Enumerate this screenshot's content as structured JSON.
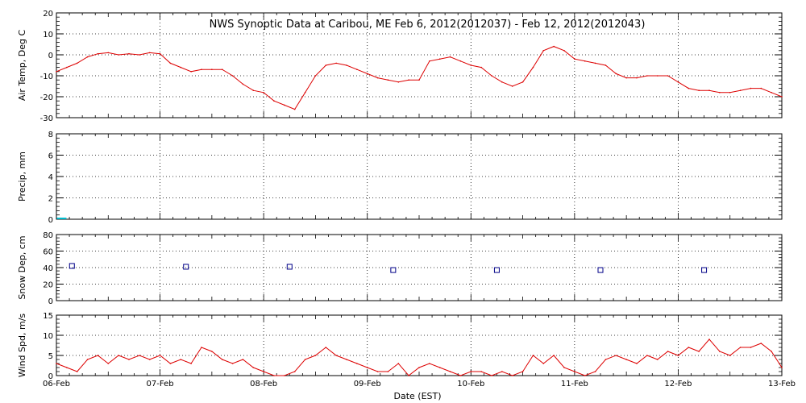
{
  "title": "NWS Synoptic Data at Caribou, ME   Feb  6, 2012(2012037) - Feb 12, 2012(2012043)",
  "xlabel": "Date (EST)",
  "x_tick_labels": [
    "06-Feb",
    "07-Feb",
    "08-Feb",
    "09-Feb",
    "10-Feb",
    "11-Feb",
    "12-Feb",
    "13-Feb"
  ],
  "colors": {
    "air_temp": "#dd0000",
    "precip": "#00bbcc",
    "snow_depth": "#000088",
    "wind_speed": "#dd0000",
    "grid": "#000000"
  },
  "chart_data": [
    {
      "type": "line",
      "ylabel": "Air Temp, Deg C",
      "ylim": [
        -30,
        20
      ],
      "yticks": [
        -30,
        -20,
        -10,
        0,
        10,
        20
      ],
      "x_unit": "days since 06-Feb",
      "series": [
        {
          "x": [
            0,
            0.1,
            0.2,
            0.3,
            0.4,
            0.5,
            0.6,
            0.7,
            0.8,
            0.9,
            1.0,
            1.1,
            1.2,
            1.3,
            1.4,
            1.5,
            1.6,
            1.7,
            1.8,
            1.9,
            2.0,
            2.1,
            2.2,
            2.3,
            2.4,
            2.5,
            2.6,
            2.7,
            2.8,
            2.9,
            3.0,
            3.1,
            3.2,
            3.3,
            3.4,
            3.5,
            3.6,
            3.7,
            3.8,
            3.9,
            4.0,
            4.1,
            4.2,
            4.3,
            4.4,
            4.5,
            4.6,
            4.7,
            4.8,
            4.9,
            5.0,
            5.1,
            5.2,
            5.3,
            5.4,
            5.5,
            5.6,
            5.7,
            5.8,
            5.9,
            6.0,
            6.1,
            6.2,
            6.3,
            6.4,
            6.5,
            6.6,
            6.7,
            6.8,
            6.9,
            7.0
          ],
          "values": [
            -8,
            -6,
            -4,
            -1,
            0.5,
            1,
            0,
            0.5,
            0,
            1,
            0.5,
            -4,
            -6,
            -8,
            -7,
            -7,
            -7,
            -10,
            -14,
            -17,
            -18,
            -22,
            -24,
            -26,
            -18,
            -10,
            -5,
            -4,
            -5,
            -7,
            -9,
            -11,
            -12,
            -13,
            -12,
            -12,
            -3,
            -2,
            -1,
            -3,
            -5,
            -6,
            -10,
            -13,
            -15,
            -13,
            -6,
            2,
            4,
            2,
            -2,
            -3,
            -4,
            -5,
            -9,
            -11,
            -11,
            -10,
            -10,
            -10,
            -13,
            -16,
            -17,
            -17,
            -18,
            -18,
            -17,
            -16,
            -16,
            -18,
            -20
          ]
        }
      ]
    },
    {
      "type": "bar",
      "ylabel": "Precip, mm",
      "ylim": [
        0,
        8
      ],
      "yticks": [
        0,
        2,
        4,
        6,
        8
      ],
      "x_unit": "days since 06-Feb",
      "series": [
        {
          "x": [
            0.05
          ],
          "values": [
            0.1
          ]
        }
      ]
    },
    {
      "type": "scatter",
      "ylabel": "Snow Dep, cm",
      "ylim": [
        0,
        80
      ],
      "yticks": [
        0,
        20,
        40,
        60,
        80
      ],
      "x_unit": "days since 06-Feb",
      "series": [
        {
          "x": [
            0.15,
            1.25,
            2.25,
            3.25,
            4.25,
            5.25,
            6.25
          ],
          "values": [
            42,
            41,
            41,
            37,
            37,
            37,
            37
          ]
        }
      ]
    },
    {
      "type": "line",
      "ylabel": "Wind Spd, m/s",
      "ylim": [
        0,
        15
      ],
      "yticks": [
        0,
        5,
        10,
        15
      ],
      "x_unit": "days since 06-Feb",
      "series": [
        {
          "x": [
            0,
            0.1,
            0.2,
            0.3,
            0.4,
            0.5,
            0.6,
            0.7,
            0.8,
            0.9,
            1.0,
            1.1,
            1.2,
            1.3,
            1.4,
            1.5,
            1.6,
            1.7,
            1.8,
            1.9,
            2.0,
            2.1,
            2.2,
            2.3,
            2.4,
            2.5,
            2.6,
            2.7,
            2.8,
            2.9,
            3.0,
            3.1,
            3.2,
            3.3,
            3.4,
            3.5,
            3.6,
            3.7,
            3.8,
            3.9,
            4.0,
            4.1,
            4.2,
            4.3,
            4.4,
            4.5,
            4.6,
            4.7,
            4.8,
            4.9,
            5.0,
            5.1,
            5.2,
            5.3,
            5.4,
            5.5,
            5.6,
            5.7,
            5.8,
            5.9,
            6.0,
            6.1,
            6.2,
            6.3,
            6.4,
            6.5,
            6.6,
            6.7,
            6.8,
            6.9,
            7.0
          ],
          "values": [
            3,
            2,
            1,
            4,
            5,
            3,
            5,
            4,
            5,
            4,
            5,
            3,
            4,
            3,
            7,
            6,
            4,
            3,
            4,
            2,
            1,
            0,
            0,
            1,
            4,
            5,
            7,
            5,
            4,
            3,
            2,
            1,
            1,
            3,
            0,
            2,
            3,
            2,
            1,
            0,
            1,
            1,
            0,
            1,
            0,
            1,
            5,
            3,
            5,
            2,
            1,
            0,
            1,
            4,
            5,
            4,
            3,
            5,
            4,
            6,
            5,
            7,
            6,
            9,
            6,
            5,
            7,
            7,
            8,
            6,
            2
          ]
        }
      ]
    }
  ]
}
